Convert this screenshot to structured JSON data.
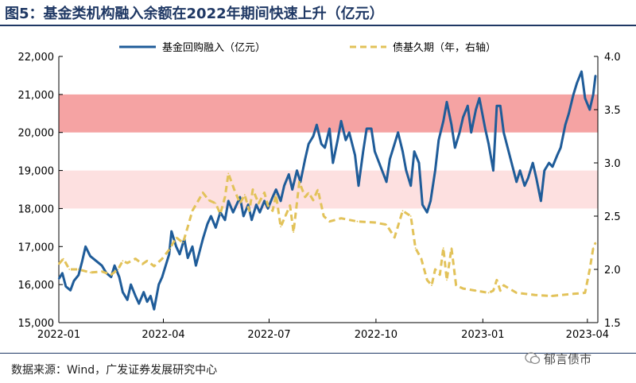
{
  "figure": {
    "title": "图5：基金类机构融入余额在2022年期间快速上升（亿元）",
    "source": "数据来源：Wind，广发证券发展研究中心",
    "watermark": "郁言债市"
  },
  "chart_data": {
    "type": "line",
    "title": "图5：基金类机构融入余额在2022年期间快速上升（亿元）",
    "legend_position": "top",
    "grid": false,
    "x_ticks": [
      "2022-01",
      "2022-04",
      "2022-07",
      "2022-10",
      "2023-01",
      "2023-04"
    ],
    "xlim": [
      "2022-01-01",
      "2023-04-10"
    ],
    "y_left_ticks": [
      "22,000",
      "21,000",
      "20,000",
      "19,000",
      "18,000",
      "17,000",
      "16,000",
      "15,000"
    ],
    "y_left_lim": [
      15000,
      22000
    ],
    "y_right_ticks": [
      "4.0",
      "3.5",
      "3.0",
      "2.5",
      "2.0",
      "1.5"
    ],
    "y_right_lim": [
      1.5,
      4.0
    ],
    "bands": [
      {
        "from": 20000,
        "to": 21000,
        "color": "#f5a3a3"
      },
      {
        "from": 18000,
        "to": 19000,
        "color": "#fde0e0"
      }
    ],
    "series": [
      {
        "name": "基金回购融入（亿元）",
        "axis": "left",
        "color": "#1f5c99",
        "style": "solid",
        "points": [
          [
            "2022-01-01",
            16150
          ],
          [
            "2022-01-04",
            16300
          ],
          [
            "2022-01-07",
            15950
          ],
          [
            "2022-01-11",
            15850
          ],
          [
            "2022-01-14",
            16100
          ],
          [
            "2022-01-18",
            16250
          ],
          [
            "2022-01-21",
            16600
          ],
          [
            "2022-01-24",
            17000
          ],
          [
            "2022-01-28",
            16750
          ],
          [
            "2022-02-07",
            16500
          ],
          [
            "2022-02-11",
            16300
          ],
          [
            "2022-02-15",
            16200
          ],
          [
            "2022-02-18",
            16500
          ],
          [
            "2022-02-22",
            16200
          ],
          [
            "2022-02-25",
            15800
          ],
          [
            "2022-03-01",
            15600
          ],
          [
            "2022-03-04",
            16000
          ],
          [
            "2022-03-08",
            15700
          ],
          [
            "2022-03-11",
            15500
          ],
          [
            "2022-03-15",
            15800
          ],
          [
            "2022-03-18",
            15550
          ],
          [
            "2022-03-21",
            15700
          ],
          [
            "2022-03-24",
            15350
          ],
          [
            "2022-03-28",
            16000
          ],
          [
            "2022-03-31",
            16200
          ],
          [
            "2022-04-06",
            16800
          ],
          [
            "2022-04-08",
            17400
          ],
          [
            "2022-04-12",
            17000
          ],
          [
            "2022-04-15",
            16800
          ],
          [
            "2022-04-19",
            17200
          ],
          [
            "2022-04-22",
            16700
          ],
          [
            "2022-04-26",
            17000
          ],
          [
            "2022-04-29",
            16500
          ],
          [
            "2022-05-05",
            17200
          ],
          [
            "2022-05-09",
            17600
          ],
          [
            "2022-05-12",
            17800
          ],
          [
            "2022-05-16",
            17500
          ],
          [
            "2022-05-20",
            17900
          ],
          [
            "2022-05-24",
            17700
          ],
          [
            "2022-05-27",
            18200
          ],
          [
            "2022-05-31",
            17900
          ],
          [
            "2022-06-06",
            18300
          ],
          [
            "2022-06-09",
            17800
          ],
          [
            "2022-06-13",
            18100
          ],
          [
            "2022-06-16",
            17700
          ],
          [
            "2022-06-20",
            18100
          ],
          [
            "2022-06-23",
            17900
          ],
          [
            "2022-06-27",
            18200
          ],
          [
            "2022-06-30",
            18000
          ],
          [
            "2022-07-04",
            18300
          ],
          [
            "2022-07-07",
            18500
          ],
          [
            "2022-07-11",
            18200
          ],
          [
            "2022-07-14",
            18600
          ],
          [
            "2022-07-18",
            18900
          ],
          [
            "2022-07-21",
            18500
          ],
          [
            "2022-07-25",
            19000
          ],
          [
            "2022-07-28",
            18700
          ],
          [
            "2022-08-01",
            19300
          ],
          [
            "2022-08-04",
            19700
          ],
          [
            "2022-08-08",
            19900
          ],
          [
            "2022-08-11",
            20200
          ],
          [
            "2022-08-15",
            19700
          ],
          [
            "2022-08-18",
            19600
          ],
          [
            "2022-08-22",
            20100
          ],
          [
            "2022-08-25",
            19200
          ],
          [
            "2022-08-29",
            19800
          ],
          [
            "2022-09-01",
            20300
          ],
          [
            "2022-09-05",
            19800
          ],
          [
            "2022-09-08",
            20000
          ],
          [
            "2022-09-13",
            19400
          ],
          [
            "2022-09-16",
            18600
          ],
          [
            "2022-09-20",
            19500
          ],
          [
            "2022-09-23",
            20100
          ],
          [
            "2022-09-27",
            20100
          ],
          [
            "2022-09-30",
            19500
          ],
          [
            "2022-10-10",
            18700
          ],
          [
            "2022-10-13",
            19300
          ],
          [
            "2022-10-17",
            19700
          ],
          [
            "2022-10-20",
            20000
          ],
          [
            "2022-10-24",
            19500
          ],
          [
            "2022-10-27",
            19000
          ],
          [
            "2022-10-31",
            18600
          ],
          [
            "2022-11-03",
            19500
          ],
          [
            "2022-11-07",
            19200
          ],
          [
            "2022-11-10",
            18100
          ],
          [
            "2022-11-14",
            17900
          ],
          [
            "2022-11-17",
            18200
          ],
          [
            "2022-11-21",
            19000
          ],
          [
            "2022-11-24",
            19800
          ],
          [
            "2022-11-28",
            20300
          ],
          [
            "2022-12-01",
            20800
          ],
          [
            "2022-12-05",
            20200
          ],
          [
            "2022-12-08",
            19600
          ],
          [
            "2022-12-12",
            20000
          ],
          [
            "2022-12-15",
            20400
          ],
          [
            "2022-12-19",
            20700
          ],
          [
            "2022-12-22",
            20000
          ],
          [
            "2022-12-26",
            20600
          ],
          [
            "2022-12-29",
            20900
          ],
          [
            "2023-01-03",
            20100
          ],
          [
            "2023-01-06",
            19700
          ],
          [
            "2023-01-10",
            19000
          ],
          [
            "2023-01-13",
            20700
          ],
          [
            "2023-01-16",
            20700
          ],
          [
            "2023-01-19",
            20000
          ],
          [
            "2023-01-30",
            18700
          ],
          [
            "2023-02-02",
            19000
          ],
          [
            "2023-02-06",
            18600
          ],
          [
            "2023-02-09",
            18800
          ],
          [
            "2023-02-13",
            19200
          ],
          [
            "2023-02-16",
            18800
          ],
          [
            "2023-02-20",
            18200
          ],
          [
            "2023-02-23",
            19000
          ],
          [
            "2023-02-27",
            19200
          ],
          [
            "2023-03-02",
            19100
          ],
          [
            "2023-03-06",
            19400
          ],
          [
            "2023-03-09",
            19600
          ],
          [
            "2023-03-13",
            20200
          ],
          [
            "2023-03-16",
            20500
          ],
          [
            "2023-03-20",
            21000
          ],
          [
            "2023-03-23",
            21300
          ],
          [
            "2023-03-27",
            21600
          ],
          [
            "2023-03-30",
            20900
          ],
          [
            "2023-04-03",
            20600
          ],
          [
            "2023-04-06",
            21000
          ],
          [
            "2023-04-08",
            21500
          ]
        ]
      },
      {
        "name": "债基久期（年，右轴）",
        "axis": "right",
        "color": "#e2c259",
        "style": "dashed",
        "points": [
          [
            "2022-01-01",
            2.05
          ],
          [
            "2022-01-05",
            2.1
          ],
          [
            "2022-01-10",
            2.0
          ],
          [
            "2022-01-18",
            2.0
          ],
          [
            "2022-01-28",
            1.97
          ],
          [
            "2022-02-07",
            1.98
          ],
          [
            "2022-02-15",
            1.95
          ],
          [
            "2022-02-21",
            2.0
          ],
          [
            "2022-02-25",
            2.08
          ],
          [
            "2022-03-01",
            2.06
          ],
          [
            "2022-03-08",
            2.1
          ],
          [
            "2022-03-14",
            2.05
          ],
          [
            "2022-03-18",
            2.08
          ],
          [
            "2022-03-24",
            2.03
          ],
          [
            "2022-03-31",
            2.1
          ],
          [
            "2022-04-07",
            2.2
          ],
          [
            "2022-04-12",
            2.3
          ],
          [
            "2022-04-18",
            2.25
          ],
          [
            "2022-04-22",
            2.4
          ],
          [
            "2022-04-26",
            2.55
          ],
          [
            "2022-05-05",
            2.72
          ],
          [
            "2022-05-10",
            2.65
          ],
          [
            "2022-05-16",
            2.62
          ],
          [
            "2022-05-20",
            2.52
          ],
          [
            "2022-05-24",
            2.68
          ],
          [
            "2022-05-27",
            2.9
          ],
          [
            "2022-06-01",
            2.75
          ],
          [
            "2022-06-06",
            2.62
          ],
          [
            "2022-06-10",
            2.7
          ],
          [
            "2022-06-14",
            2.55
          ],
          [
            "2022-06-17",
            2.75
          ],
          [
            "2022-06-22",
            2.62
          ],
          [
            "2022-06-27",
            2.72
          ],
          [
            "2022-06-30",
            2.6
          ],
          [
            "2022-07-04",
            2.55
          ],
          [
            "2022-07-07",
            2.7
          ],
          [
            "2022-07-11",
            2.4
          ],
          [
            "2022-07-15",
            2.5
          ],
          [
            "2022-07-19",
            2.6
          ],
          [
            "2022-07-22",
            2.35
          ],
          [
            "2022-07-27",
            2.82
          ],
          [
            "2022-08-01",
            2.68
          ],
          [
            "2022-08-04",
            2.72
          ],
          [
            "2022-08-08",
            2.65
          ],
          [
            "2022-08-12",
            2.75
          ],
          [
            "2022-08-17",
            2.5
          ],
          [
            "2022-08-22",
            2.45
          ],
          [
            "2022-09-01",
            2.48
          ],
          [
            "2022-09-15",
            2.45
          ],
          [
            "2022-09-30",
            2.44
          ],
          [
            "2022-10-10",
            2.42
          ],
          [
            "2022-10-17",
            2.3
          ],
          [
            "2022-10-24",
            2.55
          ],
          [
            "2022-10-31",
            2.5
          ],
          [
            "2022-11-04",
            2.2
          ],
          [
            "2022-11-09",
            2.1
          ],
          [
            "2022-11-14",
            1.9
          ],
          [
            "2022-11-18",
            1.85
          ],
          [
            "2022-11-21",
            2.0
          ],
          [
            "2022-11-25",
            1.95
          ],
          [
            "2022-11-28",
            2.2
          ],
          [
            "2022-12-01",
            1.9
          ],
          [
            "2022-12-05",
            2.2
          ],
          [
            "2022-12-09",
            1.85
          ],
          [
            "2022-12-15",
            1.82
          ],
          [
            "2022-12-26",
            1.8
          ],
          [
            "2023-01-06",
            1.78
          ],
          [
            "2023-01-10",
            1.8
          ],
          [
            "2023-01-13",
            1.9
          ],
          [
            "2023-01-16",
            1.8
          ],
          [
            "2023-01-19",
            1.85
          ],
          [
            "2023-01-30",
            1.78
          ],
          [
            "2023-02-15",
            1.76
          ],
          [
            "2023-03-01",
            1.75
          ],
          [
            "2023-03-20",
            1.77
          ],
          [
            "2023-03-30",
            1.78
          ],
          [
            "2023-04-03",
            2.0
          ],
          [
            "2023-04-06",
            2.2
          ],
          [
            "2023-04-08",
            2.25
          ]
        ]
      }
    ]
  }
}
